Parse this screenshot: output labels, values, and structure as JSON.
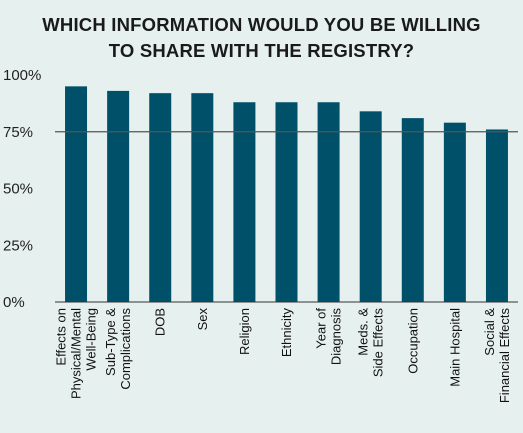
{
  "chart_data": {
    "type": "bar",
    "title_lines": [
      "WHICH INFORMATION WOULD YOU BE WILLING",
      "TO SHARE WITH THE REGISTRY?"
    ],
    "categories": [
      [
        "Effects on",
        "Physical/Mental",
        "Well-Being"
      ],
      [
        "Sub-Type &",
        "Complications"
      ],
      [
        "DOB"
      ],
      [
        "Sex"
      ],
      [
        "Religion"
      ],
      [
        "Ethnicity"
      ],
      [
        "Year of",
        "Diagnosis"
      ],
      [
        "Meds. &",
        "Side Effects"
      ],
      [
        "Occupation"
      ],
      [
        "Main Hospital"
      ],
      [
        "Social &",
        "Financial Effects"
      ]
    ],
    "values": [
      95,
      93,
      92,
      92,
      88,
      88,
      88,
      84,
      81,
      79,
      76
    ],
    "ylim": [
      0,
      100
    ],
    "yticks": [
      "0%",
      "25%",
      "50%",
      "75%",
      "100%"
    ],
    "reference_line": 75,
    "colors": {
      "bar": "#00506a",
      "background": "#e6f1ef",
      "reference": "#555555"
    }
  }
}
